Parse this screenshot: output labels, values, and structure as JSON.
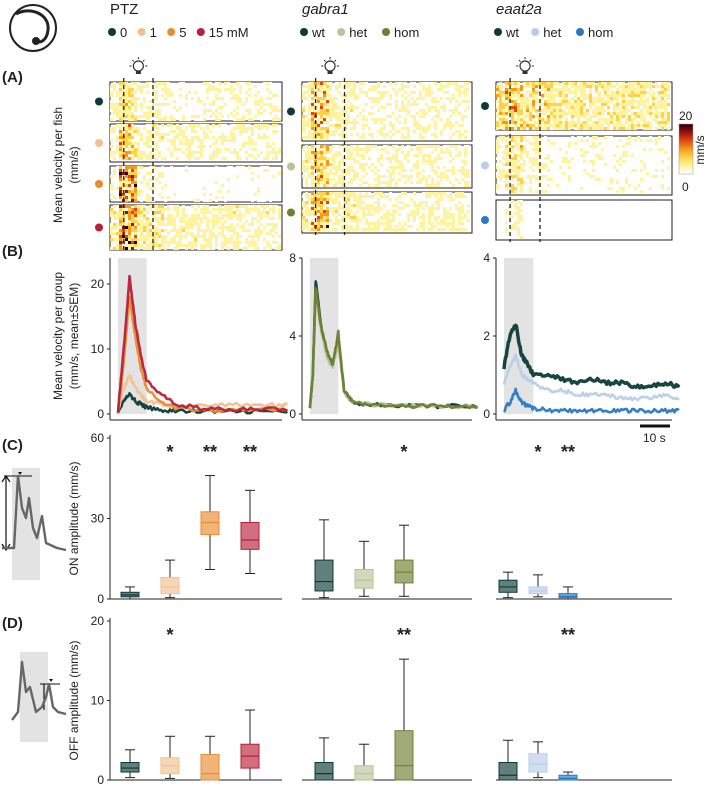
{
  "figure": {
    "panel_labels": [
      "(A)",
      "(B)",
      "(C)",
      "(D)"
    ],
    "scalebar_label": "10 s",
    "colorbar": {
      "max_label": "20",
      "min_label": "0",
      "unit": "mm/s",
      "colors": [
        "#ffffff",
        "#fff3a0",
        "#ffd24a",
        "#f59a1c",
        "#dc4a14",
        "#9a1010",
        "#2a0000"
      ]
    }
  },
  "groups": [
    {
      "title": "PTZ",
      "italic": false,
      "legend": [
        {
          "label": "0",
          "color": "#0d3b36"
        },
        {
          "label": "1",
          "color": "#f2c08f"
        },
        {
          "label": "5",
          "color": "#e88c31"
        },
        {
          "label": "15 mM",
          "color": "#b8203a"
        }
      ]
    },
    {
      "title": "gabra1",
      "italic": true,
      "legend": [
        {
          "label": "wt",
          "color": "#0d3b36"
        },
        {
          "label": "het",
          "color": "#b7c596"
        },
        {
          "label": "hom",
          "color": "#6b8033"
        }
      ]
    },
    {
      "title": "eaat2a",
      "italic": true,
      "legend": [
        {
          "label": "wt",
          "color": "#0d3b36"
        },
        {
          "label": "het",
          "color": "#b9cdea"
        },
        {
          "label": "hom",
          "color": "#2a78c2"
        }
      ]
    }
  ],
  "chart_data": [
    {
      "panel": "(A)",
      "type": "heatmap",
      "ylabel": "Mean velocity per fish (mm/s)",
      "colorbar_range": [
        0,
        20
      ],
      "colorbar_unit": "mm/s",
      "rows_per_condition": "approximate visual intensity (0-1) of stimulus-period vs baseline",
      "groups": [
        {
          "group": "PTZ",
          "conditions": [
            {
              "name": "0",
              "peak": 0.35,
              "baseline": 0.12
            },
            {
              "name": "1",
              "peak": 0.6,
              "baseline": 0.15
            },
            {
              "name": "5",
              "peak": 0.9,
              "baseline": 0.08
            },
            {
              "name": "15 mM",
              "peak": 0.85,
              "baseline": 0.2
            }
          ]
        },
        {
          "group": "gabra1",
          "conditions": [
            {
              "name": "wt",
              "peak": 0.6,
              "baseline": 0.15
            },
            {
              "name": "het",
              "peak": 0.55,
              "baseline": 0.15
            },
            {
              "name": "hom",
              "peak": 0.7,
              "baseline": 0.18
            }
          ]
        },
        {
          "group": "eaat2a",
          "conditions": [
            {
              "name": "wt",
              "peak": 0.5,
              "baseline": 0.3
            },
            {
              "name": "het",
              "peak": 0.35,
              "baseline": 0.1
            },
            {
              "name": "hom",
              "peak": 0.15,
              "baseline": 0.02
            }
          ]
        }
      ]
    },
    {
      "panel": "(B)",
      "type": "line",
      "ylabel": "Mean velocity per group (mm/s, mean±SEM)",
      "x_unit": "s",
      "x_range": [
        0,
        60
      ],
      "stimulus_window": [
        0,
        10
      ],
      "subplots": [
        {
          "group": "PTZ",
          "ylim": [
            0,
            24
          ],
          "yticks": [
            0,
            10,
            20
          ],
          "series": [
            {
              "name": "0",
              "x": [
                0,
                2,
                4,
                6,
                8,
                10,
                15,
                20,
                30,
                40,
                50,
                60
              ],
              "values": [
                0.4,
                2,
                3,
                2,
                1.5,
                1,
                0.6,
                0.5,
                0.4,
                0.4,
                0.4,
                0.4
              ]
            },
            {
              "name": "1",
              "x": [
                0,
                2,
                4,
                6,
                8,
                10,
                15,
                20,
                30,
                40,
                50,
                60
              ],
              "values": [
                0.5,
                4,
                6,
                4,
                3,
                2,
                1.5,
                1.2,
                1.3,
                1.5,
                1.3,
                1.4
              ]
            },
            {
              "name": "5",
              "x": [
                0,
                2,
                4,
                6,
                8,
                10,
                15,
                20,
                30,
                40,
                50,
                60
              ],
              "values": [
                0.4,
                8,
                18,
                12,
                7,
                4,
                2,
                1,
                0.6,
                0.6,
                0.6,
                0.6
              ]
            },
            {
              "name": "15 mM",
              "x": [
                0,
                2,
                4,
                6,
                8,
                10,
                15,
                20,
                30,
                40,
                50,
                60
              ],
              "values": [
                0.5,
                10,
                21,
                14,
                9,
                5,
                3,
                1.5,
                0.8,
                0.7,
                0.8,
                0.8
              ]
            }
          ]
        },
        {
          "group": "gabra1",
          "ylim": [
            0,
            8
          ],
          "yticks": [
            0,
            4,
            8
          ],
          "series": [
            {
              "name": "wt",
              "x": [
                0,
                1,
                2,
                4,
                6,
                8,
                10,
                12,
                15,
                20,
                30,
                40,
                50,
                60
              ],
              "values": [
                0.4,
                2,
                6.8,
                4.5,
                3,
                2.6,
                3.8,
                1.2,
                0.6,
                0.5,
                0.4,
                0.4,
                0.4,
                0.4
              ]
            },
            {
              "name": "het",
              "x": [
                0,
                1,
                2,
                4,
                6,
                8,
                10,
                12,
                15,
                20,
                30,
                40,
                50,
                60
              ],
              "values": [
                0.4,
                2,
                6.2,
                4.2,
                2.9,
                2.4,
                3.6,
                1.1,
                0.6,
                0.5,
                0.4,
                0.4,
                0.4,
                0.4
              ]
            },
            {
              "name": "hom",
              "x": [
                0,
                1,
                2,
                4,
                6,
                8,
                10,
                12,
                15,
                20,
                30,
                40,
                50,
                60
              ],
              "values": [
                0.4,
                2,
                6.5,
                4.4,
                3.2,
                2.5,
                4.2,
                1.2,
                0.7,
                0.5,
                0.4,
                0.4,
                0.4,
                0.4
              ]
            }
          ]
        },
        {
          "group": "eaat2a",
          "ylim": [
            0,
            4
          ],
          "yticks": [
            0,
            2,
            4
          ],
          "series": [
            {
              "name": "wt",
              "x": [
                0,
                2,
                4,
                6,
                8,
                10,
                15,
                20,
                25,
                30,
                35,
                40,
                45,
                50,
                55,
                60
              ],
              "values": [
                1.2,
                2,
                2.3,
                1.5,
                1.3,
                1,
                1,
                0.9,
                0.8,
                0.9,
                0.8,
                0.8,
                0.7,
                0.7,
                0.8,
                0.7
              ]
            },
            {
              "name": "het",
              "x": [
                0,
                2,
                4,
                6,
                8,
                10,
                15,
                20,
                25,
                30,
                35,
                40,
                45,
                50,
                55,
                60
              ],
              "values": [
                0.8,
                1.2,
                1.5,
                1,
                0.9,
                0.8,
                0.6,
                0.6,
                0.5,
                0.5,
                0.5,
                0.4,
                0.4,
                0.4,
                0.5,
                0.4
              ]
            },
            {
              "name": "hom",
              "x": [
                0,
                2,
                4,
                6,
                8,
                10,
                15,
                20,
                25,
                30,
                35,
                40,
                45,
                50,
                55,
                60
              ],
              "values": [
                0.1,
                0.3,
                0.6,
                0.3,
                0.2,
                0.15,
                0.1,
                0.08,
                0.08,
                0.08,
                0.08,
                0.08,
                0.08,
                0.08,
                0.08,
                0.08
              ]
            }
          ]
        }
      ]
    },
    {
      "panel": "(C)",
      "type": "box",
      "ylabel": "ON amplitude (mm/s)",
      "ylim": [
        0,
        60
      ],
      "yticks": [
        0,
        30,
        60
      ],
      "subplots": [
        {
          "group": "PTZ",
          "boxes": [
            {
              "name": "0",
              "min": 0,
              "q1": 0.8,
              "median": 1.5,
              "q3": 2.5,
              "max": 4.5,
              "sig": ""
            },
            {
              "name": "1",
              "min": 0.5,
              "q1": 2,
              "median": 4.5,
              "q3": 8,
              "max": 14.5,
              "sig": "*"
            },
            {
              "name": "5",
              "min": 11,
              "q1": 24,
              "median": 28.5,
              "q3": 32.5,
              "max": 46,
              "sig": "**"
            },
            {
              "name": "15 mM",
              "min": 9.5,
              "q1": 18.5,
              "median": 22,
              "q3": 28.5,
              "max": 40.5,
              "sig": "**"
            }
          ]
        },
        {
          "group": "gabra1",
          "boxes": [
            {
              "name": "wt",
              "min": 0.5,
              "q1": 3,
              "median": 6.5,
              "q3": 14.5,
              "max": 29.5,
              "sig": ""
            },
            {
              "name": "het",
              "min": 1,
              "q1": 4,
              "median": 7,
              "q3": 11,
              "max": 21.5,
              "sig": ""
            },
            {
              "name": "hom",
              "min": 1,
              "q1": 6,
              "median": 10,
              "q3": 14.5,
              "max": 27.5,
              "sig": "*"
            }
          ]
        },
        {
          "group": "eaat2a",
          "boxes": [
            {
              "name": "wt",
              "min": 0.5,
              "q1": 2.5,
              "median": 4.5,
              "q3": 7,
              "max": 10,
              "sig": ""
            },
            {
              "name": "het",
              "min": 0.8,
              "q1": 2,
              "median": 3,
              "q3": 4.5,
              "max": 9,
              "sig": "*"
            },
            {
              "name": "hom",
              "min": 0,
              "q1": 0.5,
              "median": 1,
              "q3": 2,
              "max": 4.5,
              "sig": "**"
            }
          ]
        }
      ]
    },
    {
      "panel": "(D)",
      "type": "box",
      "ylabel": "OFF amplitude (mm/s)",
      "ylim": [
        0,
        20
      ],
      "yticks": [
        0,
        10,
        20
      ],
      "subplots": [
        {
          "group": "PTZ",
          "boxes": [
            {
              "name": "0",
              "min": 0.3,
              "q1": 1,
              "median": 1.5,
              "q3": 2.2,
              "max": 3.8,
              "sig": ""
            },
            {
              "name": "1",
              "min": 0.2,
              "q1": 0.8,
              "median": 1.8,
              "q3": 2.8,
              "max": 5.5,
              "sig": "*"
            },
            {
              "name": "5",
              "min": 0,
              "q1": 0,
              "median": 0.8,
              "q3": 3.2,
              "max": 5.5,
              "sig": ""
            },
            {
              "name": "15 mM",
              "min": 0,
              "q1": 1.5,
              "median": 3,
              "q3": 4.5,
              "max": 8.8,
              "sig": ""
            }
          ]
        },
        {
          "group": "gabra1",
          "boxes": [
            {
              "name": "wt",
              "min": 0,
              "q1": 0,
              "median": 0.8,
              "q3": 2.2,
              "max": 5.3,
              "sig": ""
            },
            {
              "name": "het",
              "min": 0,
              "q1": 0,
              "median": 0.8,
              "q3": 1.8,
              "max": 4.5,
              "sig": ""
            },
            {
              "name": "hom",
              "min": 0,
              "q1": 0,
              "median": 1.8,
              "q3": 6.2,
              "max": 15.2,
              "sig": "**"
            }
          ]
        },
        {
          "group": "eaat2a",
          "boxes": [
            {
              "name": "wt",
              "min": 0,
              "q1": 0,
              "median": 0.6,
              "q3": 2.2,
              "max": 5,
              "sig": ""
            },
            {
              "name": "het",
              "min": 0.3,
              "q1": 1,
              "median": 2,
              "q3": 3.3,
              "max": 4.8,
              "sig": ""
            },
            {
              "name": "hom",
              "min": 0,
              "q1": 0,
              "median": 0.2,
              "q3": 0.6,
              "max": 1,
              "sig": "**"
            }
          ]
        }
      ]
    }
  ]
}
